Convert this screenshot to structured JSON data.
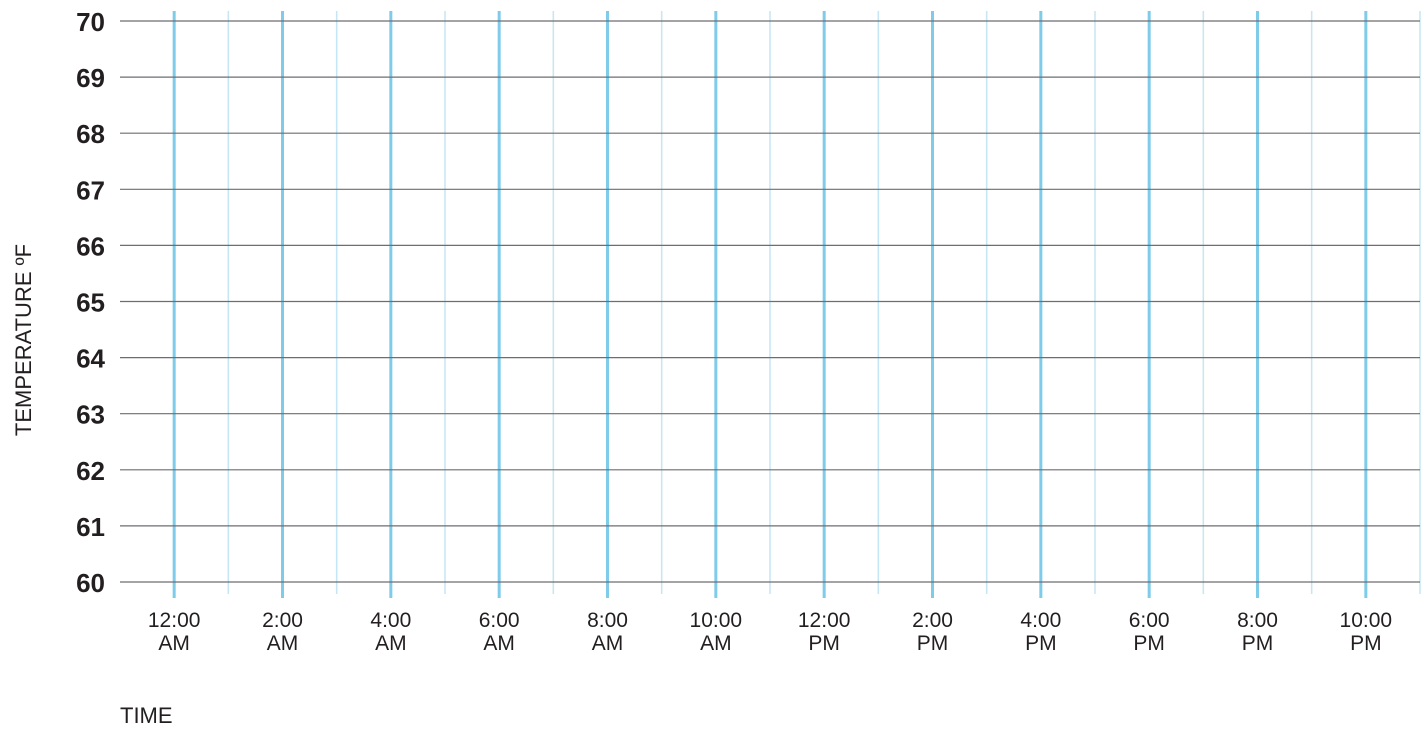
{
  "chart_data": {
    "type": "line",
    "title": "",
    "xlabel": "TIME",
    "ylabel": "TEMPERATURE ºF",
    "ylim": [
      60,
      70
    ],
    "yticks": [
      60,
      61,
      62,
      63,
      64,
      65,
      66,
      67,
      68,
      69,
      70
    ],
    "ytick_labels": [
      "60",
      "61",
      "62",
      "63",
      "64",
      "65",
      "66",
      "67",
      "68",
      "69",
      "70"
    ],
    "x_hours_major": [
      0,
      2,
      4,
      6,
      8,
      10,
      12,
      14,
      16,
      18,
      20,
      22
    ],
    "x_hours_minor": [
      1,
      3,
      5,
      7,
      9,
      11,
      13,
      15,
      17,
      19,
      21,
      23
    ],
    "xlim_hours": [
      -1,
      23
    ],
    "xtick_labels": [
      [
        "12:00",
        "AM"
      ],
      [
        "2:00",
        "AM"
      ],
      [
        "4:00",
        "AM"
      ],
      [
        "6:00",
        "AM"
      ],
      [
        "8:00",
        "AM"
      ],
      [
        "10:00",
        "AM"
      ],
      [
        "12:00",
        "PM"
      ],
      [
        "2:00",
        "PM"
      ],
      [
        "4:00",
        "PM"
      ],
      [
        "6:00",
        "PM"
      ],
      [
        "8:00",
        "PM"
      ],
      [
        "10:00",
        "PM"
      ]
    ],
    "series": [],
    "grid": true,
    "colors": {
      "major_vertical": "#7fcbea",
      "minor_vertical": "#c5e6f4",
      "horizontal": "#6d6e71",
      "text": "#231f20"
    }
  }
}
